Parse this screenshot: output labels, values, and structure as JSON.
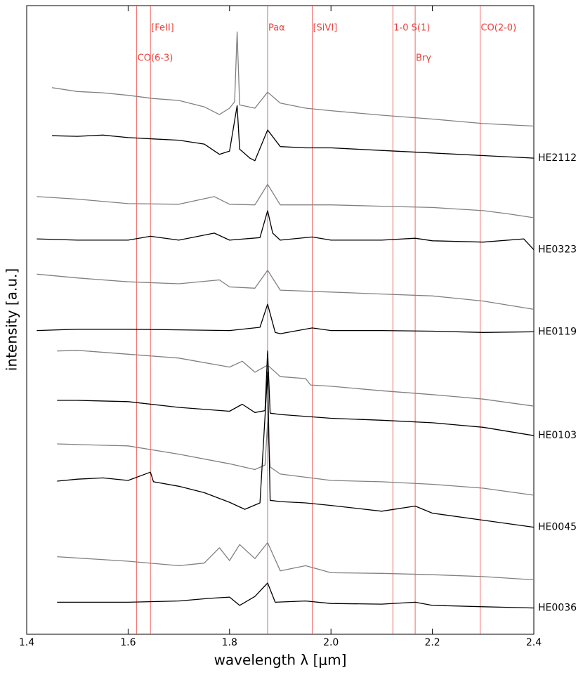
{
  "chart_data": {
    "type": "line",
    "x_label": "wavelength λ [μm]",
    "y_label": "intensity [a.u.]",
    "xlim": [
      1.4,
      2.4
    ],
    "ylim": [
      1.9,
      100
    ],
    "xticks": [
      1.4,
      1.6,
      1.8,
      {
        "value": 2,
        "label": "2.0"
      },
      2.2,
      2.4
    ],
    "marker_color": "#e8413c",
    "markers_upper": [
      {
        "label": "[FeII]",
        "x": 1.644
      },
      {
        "label": "Paα",
        "x": 1.875
      },
      {
        "label": "[SiVI]",
        "x": 1.963
      },
      {
        "label": "1-0 S(1)",
        "x": 2.122
      },
      {
        "label": "CO(2-0)",
        "x": 2.294
      }
    ],
    "markers_lower": [
      {
        "label": "CO(6-3)",
        "x": 1.617
      },
      {
        "label": "Brγ",
        "x": 2.166
      }
    ],
    "series": [
      {
        "color": "#808080",
        "x": [
          1.45,
          1.5,
          1.55,
          1.6,
          1.65,
          1.7,
          1.75,
          1.78,
          1.8,
          1.81,
          1.815,
          1.82,
          1.85,
          1.875,
          1.9,
          1.95,
          2.0,
          2.1,
          2.2,
          2.3,
          2.4
        ],
        "values": [
          87.2,
          86.6,
          86.4,
          86.0,
          85.5,
          85.2,
          84.2,
          83.0,
          84.0,
          85.0,
          95.9,
          84.5,
          84.0,
          86.5,
          84.8,
          84.0,
          83.6,
          82.9,
          82.3,
          81.6,
          81.2
        ]
      },
      {
        "name": "HE2112",
        "color": "#000000",
        "x": [
          1.45,
          1.5,
          1.55,
          1.6,
          1.65,
          1.7,
          1.75,
          1.78,
          1.8,
          1.815,
          1.82,
          1.84,
          1.85,
          1.875,
          1.9,
          1.95,
          2.0,
          2.1,
          2.2,
          2.3,
          2.4
        ],
        "values": [
          79.7,
          79.6,
          79.8,
          79.4,
          79.2,
          79.0,
          78.4,
          76.8,
          77.3,
          84.4,
          77.6,
          76.2,
          75.8,
          80.6,
          78.0,
          77.8,
          77.8,
          77.4,
          77.0,
          76.6,
          76.2
        ]
      },
      {
        "color": "#808080",
        "x": [
          1.42,
          1.5,
          1.6,
          1.7,
          1.77,
          1.8,
          1.85,
          1.875,
          1.9,
          2.0,
          2.1,
          2.2,
          2.3,
          2.35,
          2.4
        ],
        "values": [
          70.2,
          69.8,
          69.1,
          69.0,
          70.2,
          69.0,
          68.9,
          72.1,
          68.9,
          68.9,
          68.7,
          68.5,
          68.0,
          67.5,
          66.9
        ]
      },
      {
        "name": "HE0323",
        "color": "#000000",
        "x": [
          1.42,
          1.5,
          1.6,
          1.644,
          1.7,
          1.77,
          1.8,
          1.86,
          1.875,
          1.885,
          1.9,
          1.963,
          2.0,
          2.1,
          2.166,
          2.2,
          2.3,
          2.38,
          2.4
        ],
        "values": [
          63.6,
          63.4,
          63.4,
          64.0,
          63.4,
          64.5,
          63.4,
          63.8,
          68.0,
          64.5,
          63.4,
          63.9,
          63.4,
          63.4,
          63.7,
          63.3,
          63.1,
          63.6,
          61.9
        ]
      },
      {
        "color": "#808080",
        "x": [
          1.42,
          1.5,
          1.6,
          1.7,
          1.78,
          1.8,
          1.85,
          1.875,
          1.9,
          2.0,
          2.1,
          2.2,
          2.3,
          2.4
        ],
        "values": [
          58.1,
          57.5,
          56.9,
          56.6,
          57.2,
          56.1,
          55.9,
          58.7,
          55.6,
          55.3,
          55.0,
          54.7,
          53.9,
          52.6
        ]
      },
      {
        "name": "HE0119",
        "color": "#000000",
        "x": [
          1.42,
          1.5,
          1.6,
          1.7,
          1.8,
          1.86,
          1.875,
          1.89,
          1.9,
          1.963,
          2.0,
          2.1,
          2.2,
          2.3,
          2.4
        ],
        "values": [
          49.3,
          49.5,
          49.5,
          49.4,
          49.3,
          49.8,
          53.4,
          49.0,
          48.8,
          49.7,
          49.3,
          49.3,
          49.2,
          49.0,
          49.1
        ]
      },
      {
        "color": "#808080",
        "x": [
          1.46,
          1.5,
          1.6,
          1.7,
          1.8,
          1.825,
          1.85,
          1.875,
          1.9,
          1.95,
          1.96,
          2.0,
          2.1,
          2.2,
          2.3,
          2.4
        ],
        "values": [
          46.1,
          46.2,
          45.6,
          45.0,
          43.6,
          44.5,
          42.8,
          43.9,
          42.1,
          41.8,
          40.8,
          40.6,
          39.9,
          39.3,
          38.6,
          37.5
        ]
      },
      {
        "name": "HE0103",
        "color": "#000000",
        "x": [
          1.46,
          1.5,
          1.6,
          1.7,
          1.8,
          1.825,
          1.85,
          1.87,
          1.875,
          1.88,
          1.9,
          2.0,
          2.1,
          2.2,
          2.3,
          2.4
        ],
        "values": [
          38.4,
          38.4,
          38.2,
          37.3,
          36.7,
          37.8,
          36.5,
          36.8,
          46.1,
          36.4,
          36.2,
          35.6,
          35.3,
          34.9,
          34.2,
          32.9
        ]
      },
      {
        "color": "#808080",
        "x": [
          1.46,
          1.5,
          1.6,
          1.7,
          1.8,
          1.85,
          1.87,
          1.875,
          1.88,
          1.9,
          2.0,
          2.1,
          2.2,
          2.3,
          2.4
        ],
        "values": [
          31.6,
          31.5,
          31.3,
          30.0,
          28.5,
          27.6,
          28.3,
          35.1,
          28.0,
          26.9,
          25.9,
          25.7,
          25.3,
          24.7,
          23.6
        ]
      },
      {
        "name": "HE0045",
        "color": "#000000",
        "x": [
          1.46,
          1.5,
          1.55,
          1.6,
          1.644,
          1.65,
          1.7,
          1.75,
          1.8,
          1.83,
          1.86,
          1.875,
          1.88,
          1.9,
          1.95,
          2.0,
          2.1,
          2.166,
          2.2,
          2.3,
          2.4
        ],
        "values": [
          25.8,
          26.1,
          26.3,
          25.9,
          27.2,
          25.7,
          25.0,
          24.0,
          22.5,
          21.4,
          22.4,
          42.8,
          22.8,
          22.6,
          22.4,
          22.0,
          21.1,
          21.9,
          20.8,
          19.7,
          18.6
        ]
      },
      {
        "color": "#808080",
        "x": [
          1.46,
          1.6,
          1.7,
          1.75,
          1.78,
          1.8,
          1.82,
          1.85,
          1.875,
          1.9,
          1.95,
          2.0,
          2.1,
          2.2,
          2.3,
          2.4
        ],
        "values": [
          14.0,
          13.3,
          12.6,
          13.0,
          15.4,
          13.4,
          15.9,
          13.7,
          16.2,
          11.8,
          12.6,
          11.5,
          11.4,
          11.2,
          10.9,
          10.4
        ]
      },
      {
        "name": "HE0036",
        "color": "#000000",
        "x": [
          1.46,
          1.6,
          1.7,
          1.76,
          1.8,
          1.82,
          1.85,
          1.875,
          1.89,
          1.95,
          2.0,
          2.1,
          2.166,
          2.2,
          2.3,
          2.4
        ],
        "values": [
          6.9,
          6.9,
          7.1,
          7.5,
          7.7,
          6.4,
          7.8,
          9.9,
          6.9,
          7.1,
          6.7,
          6.6,
          6.9,
          6.4,
          6.2,
          6.0
        ]
      }
    ]
  }
}
